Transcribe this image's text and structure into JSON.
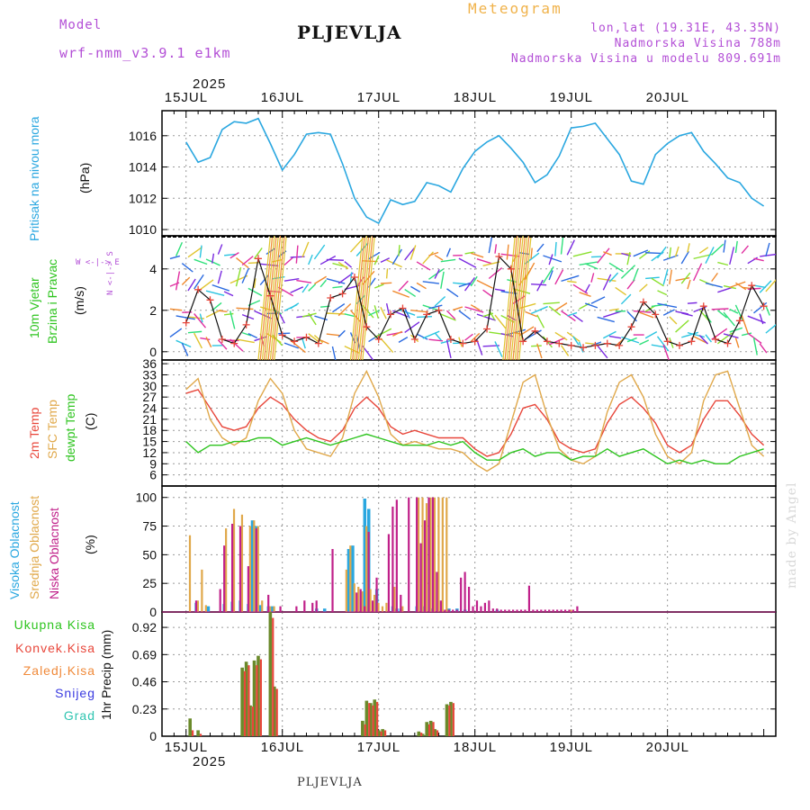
{
  "header": {
    "model_label": "Model",
    "model_name": "wrf-nmm_v3.9.1 e1km",
    "station": "PLJEVLJA",
    "title": "Meteogram",
    "lonlat": "lon,lat (19.31E, 43.35N)",
    "elevation": "Nadmorska Visina 788m",
    "model_elevation": "Nadmorska Visina u modelu 809.691m",
    "footer_station": "PLJEVLJA",
    "watermark": "made by Angel"
  },
  "time_axis": {
    "year": "2025",
    "days": [
      "15JUL",
      "16JUL",
      "17JUL",
      "18JUL",
      "19JUL",
      "20JUL"
    ]
  },
  "panels": {
    "pressure": {
      "label": "Pritisak na nivou mora",
      "unit": "(hPa)",
      "color": "#2aa7e0"
    },
    "wind": {
      "label1": "10m Vjetar",
      "label2": "Brzina i Pravac",
      "unit": "(m/s)",
      "compass": "W <-|-> E",
      "compass_ns": "N <-|-> S"
    },
    "temp": {
      "label1": "2m Temp",
      "label2": "SFC Temp",
      "label3": "dewpt Temp",
      "unit": "(C)"
    },
    "cloud": {
      "label1": "Visoka Oblacnost",
      "label2": "Srednja Oblacnost",
      "label3": "Niska Oblacnost",
      "unit": "(%)"
    },
    "precip": {
      "labels": [
        "Ukupna Kisa",
        "Konvek.Kisa",
        "Zaledj.Kisa",
        "Snijeg",
        "Grad"
      ],
      "unit": "1hr Precip (mm)"
    }
  },
  "colors": {
    "pressure": "#2aa7e0",
    "temp2m": "#e8463a",
    "tempsfc": "#e0a84a",
    "dewpt": "#2ec41f",
    "cloud_high": "#2aa7e0",
    "cloud_mid": "#e0a84a",
    "cloud_low": "#c0208a",
    "rain_total": "#2ec41f",
    "rain_conv": "#e8463a",
    "rain_frz": "#f08a3a",
    "snow": "#3a3ae0",
    "hail": "#2ec4b0",
    "precip_bar": "#6a8a2a"
  },
  "chart_data": [
    {
      "type": "line",
      "title": "",
      "ylabel": "(hPa)",
      "ylim": [
        1009.6,
        1017.6
      ],
      "yticks": [
        1010,
        1012,
        1014,
        1016
      ],
      "x": [
        0,
        3,
        6,
        9,
        12,
        15,
        18,
        21,
        24,
        27,
        30,
        33,
        36,
        39,
        42,
        45,
        48,
        51,
        54,
        57,
        60,
        63,
        66,
        69,
        72,
        75,
        78,
        81,
        84,
        87,
        90,
        93,
        96,
        99,
        102,
        105,
        108,
        111,
        114,
        117,
        120,
        123,
        126,
        129,
        132,
        135,
        138,
        141,
        144
      ],
      "series": [
        {
          "name": "Pritisak na nivou mora",
          "values": [
            1015.6,
            1014.3,
            1014.6,
            1016.4,
            1016.9,
            1016.8,
            1017.1,
            1015.5,
            1013.8,
            1014.8,
            1016.1,
            1016.2,
            1016.1,
            1014.2,
            1012.0,
            1010.8,
            1010.4,
            1011.9,
            1011.6,
            1011.8,
            1013.0,
            1012.8,
            1012.4,
            1013.9,
            1015.0,
            1015.6,
            1016.0,
            1015.2,
            1014.3,
            1013.0,
            1013.5,
            1014.7,
            1016.5,
            1016.6,
            1016.8,
            1015.8,
            1014.8,
            1013.1,
            1012.9,
            1014.8,
            1015.5,
            1016.0,
            1016.2,
            1015.0,
            1014.2,
            1013.3,
            1013.0,
            1012.0,
            1011.5
          ]
        }
      ]
    },
    {
      "type": "line",
      "title": "",
      "ylabel": "(m/s)",
      "ylim": [
        -0.4,
        5.6
      ],
      "yticks": [
        0,
        2,
        4
      ],
      "x": [
        0,
        3,
        6,
        9,
        12,
        15,
        18,
        21,
        24,
        27,
        30,
        33,
        36,
        39,
        42,
        45,
        48,
        51,
        54,
        57,
        60,
        63,
        66,
        69,
        72,
        75,
        78,
        81,
        84,
        87,
        90,
        93,
        96,
        99,
        102,
        105,
        108,
        111,
        114,
        117,
        120,
        123,
        126,
        129,
        132,
        135,
        138,
        141,
        144
      ],
      "series": [
        {
          "name": "10m Vjetar",
          "values": [
            1.4,
            3.0,
            2.5,
            0.6,
            0.4,
            1.3,
            4.5,
            2.7,
            0.8,
            0.5,
            0.7,
            0.4,
            2.6,
            2.8,
            3.6,
            1.2,
            0.6,
            1.8,
            2.1,
            0.6,
            1.8,
            2.0,
            0.6,
            0.4,
            0.5,
            1.1,
            4.6,
            4.0,
            0.5,
            1.0,
            0.5,
            0.4,
            0.3,
            0.2,
            0.3,
            0.4,
            0.3,
            1.2,
            2.4,
            1.8,
            0.5,
            0.3,
            0.5,
            2.2,
            0.6,
            0.4,
            1.5,
            3.2,
            2.2
          ]
        }
      ]
    },
    {
      "type": "line",
      "title": "",
      "ylabel": "(C)",
      "ylim": [
        3,
        37
      ],
      "yticks": [
        6,
        9,
        12,
        15,
        18,
        21,
        24,
        27,
        30,
        33,
        36
      ],
      "x": [
        0,
        3,
        6,
        9,
        12,
        15,
        18,
        21,
        24,
        27,
        30,
        33,
        36,
        39,
        42,
        45,
        48,
        51,
        54,
        57,
        60,
        63,
        66,
        69,
        72,
        75,
        78,
        81,
        84,
        87,
        90,
        93,
        96,
        99,
        102,
        105,
        108,
        111,
        114,
        117,
        120,
        123,
        126,
        129,
        132,
        135,
        138,
        141,
        144
      ],
      "series": [
        {
          "name": "2m Temp",
          "values": [
            28,
            29,
            24,
            19,
            18,
            19,
            24,
            27,
            25,
            21,
            18,
            16,
            15,
            18,
            24,
            27,
            24,
            19,
            17,
            18,
            17,
            16,
            16,
            16,
            13,
            11,
            12,
            17,
            24,
            25,
            21,
            15,
            13,
            12,
            13,
            20,
            25,
            27,
            24,
            20,
            14,
            12,
            14,
            21,
            26,
            26,
            22,
            17,
            14
          ]
        },
        {
          "name": "SFC Temp",
          "values": [
            29,
            32,
            21,
            16,
            14,
            16,
            26,
            32,
            28,
            18,
            13,
            12,
            11,
            16,
            28,
            34,
            27,
            17,
            14,
            15,
            14,
            13,
            13,
            12,
            9,
            7,
            9,
            20,
            31,
            33,
            22,
            13,
            10,
            9,
            11,
            23,
            31,
            33,
            27,
            17,
            11,
            9,
            12,
            26,
            33,
            34,
            24,
            14,
            11
          ]
        },
        {
          "name": "dewpt Temp",
          "values": [
            15,
            12,
            14,
            14,
            15,
            15,
            16,
            16,
            14,
            15,
            16,
            15,
            14,
            15,
            16,
            17,
            16,
            15,
            14,
            14,
            14,
            15,
            14,
            15,
            12,
            10,
            10,
            12,
            13,
            11,
            12,
            12,
            10,
            11,
            11,
            13,
            11,
            12,
            13,
            11,
            9,
            10,
            9,
            10,
            9,
            9,
            11,
            12,
            13
          ]
        }
      ]
    },
    {
      "type": "bar",
      "title": "",
      "ylabel": "(%)",
      "ylim": [
        0,
        110
      ],
      "yticks": [
        0,
        25,
        50,
        75,
        100
      ],
      "series": [
        {
          "name": "Visoka Oblacnost",
          "x": [
            3,
            6,
            10,
            12,
            14,
            16,
            17,
            18,
            19,
            21,
            22,
            33,
            35,
            41,
            42,
            45,
            46,
            48,
            52,
            53,
            54,
            58,
            60,
            62,
            66,
            68,
            70,
            78
          ],
          "values": [
            8,
            5,
            7,
            9,
            10,
            7,
            80,
            75,
            6,
            5,
            5,
            3,
            3,
            55,
            58,
            99,
            90,
            20,
            5,
            3,
            3,
            5,
            5,
            3,
            3,
            3,
            2,
            2
          ]
        },
        {
          "name": "Srednja Oblacnost",
          "x": [
            1,
            3,
            4,
            5,
            10,
            12,
            14,
            16,
            17,
            18,
            19,
            21,
            22,
            40,
            41,
            42,
            43,
            44,
            45,
            46,
            47,
            48,
            49,
            50,
            52,
            54,
            58,
            59,
            60,
            61,
            62,
            63,
            64,
            65,
            96
          ],
          "values": [
            67,
            10,
            37,
            6,
            73,
            90,
            85,
            75,
            80,
            75,
            10,
            5,
            5,
            37,
            58,
            25,
            22,
            18,
            75,
            20,
            15,
            8,
            5,
            8,
            22,
            5,
            100,
            100,
            95,
            100,
            100,
            100,
            100,
            100,
            2
          ]
        },
        {
          "name": "Niska Oblacnost",
          "x": [
            2,
            8,
            9,
            11,
            13,
            15,
            17,
            20,
            23,
            27,
            29,
            31,
            32,
            36,
            42,
            43,
            44,
            45,
            46,
            47,
            50,
            51,
            52,
            53,
            55,
            57,
            58,
            59,
            60,
            61,
            62,
            63,
            64,
            65,
            66,
            67,
            68,
            69,
            70,
            71,
            72,
            73,
            74,
            75,
            76,
            77,
            78,
            79,
            80,
            81,
            82,
            83,
            84,
            85,
            86,
            87,
            88,
            89,
            90,
            91,
            92,
            93,
            94,
            95,
            96,
            97
          ],
          "values": [
            10,
            20,
            58,
            77,
            75,
            40,
            73,
            15,
            5,
            5,
            10,
            8,
            10,
            55,
            17,
            20,
            5,
            70,
            10,
            30,
            68,
            92,
            98,
            15,
            100,
            100,
            60,
            80,
            100,
            100,
            35,
            10,
            2,
            2,
            2,
            2,
            30,
            35,
            22,
            5,
            10,
            5,
            8,
            10,
            3,
            3,
            2,
            2,
            2,
            2,
            2,
            2,
            2,
            23,
            2,
            2,
            2,
            2,
            2,
            2,
            2,
            2,
            2,
            2,
            2,
            5
          ]
        }
      ]
    },
    {
      "type": "bar",
      "title": "",
      "ylabel": "1hr Precip (mm)",
      "ylim": [
        0,
        1.05
      ],
      "yticks": [
        0,
        0.23,
        0.46,
        0.69,
        0.92
      ],
      "series": [
        {
          "name": "Ukupna Kisa",
          "x": [
            1,
            3,
            14,
            15,
            16,
            17,
            18,
            19,
            20,
            21,
            22,
            23,
            44,
            45,
            46,
            47,
            48,
            49,
            58,
            59,
            60,
            61,
            62,
            63,
            64,
            65,
            66,
            67
          ],
          "values": [
            0.15,
            0.05,
            0.58,
            0.63,
            0.26,
            0.64,
            0.68,
            0.0,
            0.0,
            1.05,
            0.42,
            0.0,
            0.13,
            0.3,
            0.28,
            0.31,
            0.05,
            0.06,
            0.04,
            0.02,
            0.12,
            0.13,
            0.06,
            0.0,
            0.0,
            0.27,
            0.29,
            0.0
          ]
        },
        {
          "name": "Konvek.Kisa",
          "x": [
            1,
            3,
            14,
            15,
            16,
            17,
            18,
            19,
            21,
            22,
            44,
            45,
            46,
            47,
            48,
            49,
            58,
            60,
            61,
            62,
            65,
            66
          ],
          "values": [
            0.05,
            0.02,
            0.55,
            0.6,
            0.25,
            0.6,
            0.65,
            0.0,
            1.0,
            0.4,
            0.1,
            0.28,
            0.26,
            0.29,
            0.04,
            0.05,
            0.03,
            0.1,
            0.12,
            0.05,
            0.26,
            0.28
          ]
        }
      ]
    }
  ]
}
